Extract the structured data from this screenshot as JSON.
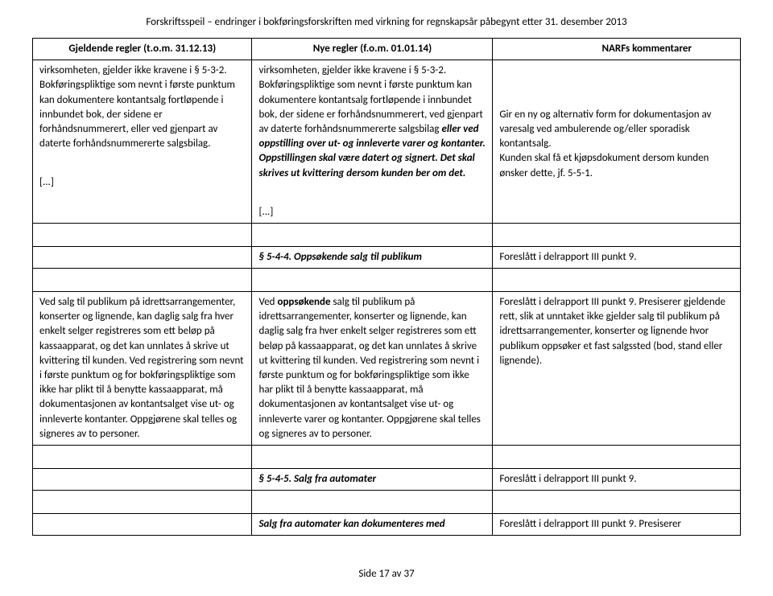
{
  "pageTitle": "Forskriftsspeil – endringer i bokføringsforskriften med virkning for regnskapsår påbegynt etter 31. desember 2013",
  "headers": {
    "col1": "Gjeldende regler (t.o.m. 31.12.13)",
    "col2": "Nye regler (f.o.m. 01.01.14)",
    "col3": "NARFs kommentarer"
  },
  "r1c1a": "virksomheten, gjelder ikke kravene i § 5-3-2. Bokføringspliktige som nevnt i første punktum kan dokumentere kontantsalg fortløpende i innbundet bok, der sidene er forhåndsnummerert, eller ved gjenpart av daterte forhåndsnummererte salgsbilag.",
  "r1c2a": "virksomheten, gjelder ikke kravene i § 5-3-2. Bokføringspliktige som nevnt i første punktum kan dokumentere kontantsalg fortløpende i innbundet bok, der sidene er forhåndsnummerert, ved gjenpart av daterte forhåndsnummererte salgsbilag ",
  "r1c2b": "eller ved oppstilling over ut- og innleverte varer og kontanter. Oppstillingen skal være datert og signert. Det skal skrives ut kvittering dersom kunden ber om det.",
  "r1c3a": "Gir en ny og alternativ form for dokumentasjon av varesalg ved ambulerende og/eller sporadisk kontantsalg.",
  "r1c3b": "Kunden skal få et kjøpsdokument dersom kunden ønsker dette, jf. 5-5-1.",
  "ellipsis": "[...]",
  "sec544": "§ 5-4-4. Oppsøkende salg til publikum",
  "sec544ref": "Foreslått i delrapport III punkt 9.",
  "r3c1": "Ved salg til publikum på idrettsarrangementer, konserter og lignende, kan daglig salg fra hver enkelt selger registreres som ett beløp på kassaapparat, og det kan unnlates å skrive ut kvittering til kunden. Ved registrering som nevnt i første punktum og for bokføringspliktige som ikke har plikt til å benytte kassaapparat, må dokumentasjonen av kontantsalget vise ut- og innleverte kontanter. Oppgjørene skal telles og signeres av to personer.",
  "r3c2a": "Ved ",
  "r3c2b": "oppsøkende",
  "r3c2c": " salg til publikum på idrettsarrangementer, konserter og lignende, kan daglig salg fra hver enkelt selger registreres som ett beløp på kassaapparat, og det kan unnlates å skrive ut kvittering til kunden. Ved registrering som nevnt i første punktum og for bokføringspliktige som ikke har plikt til å benytte kassaapparat, må dokumentasjonen av kontantsalget vise ut- og innleverte varer og kontanter. Oppgjørene skal telles og signeres av to personer.",
  "r3c3a": "Foreslått i delrapport III punkt 9. Presiserer gjeldende rett, slik at unntaket ikke gjelder salg til publikum på idrettsarrangementer, konserter og lignende hvor publikum oppsøker et fast salgssted (bod, stand eller lignende).",
  "sec545": "§ 5-4-5. Salg fra automater",
  "sec545ref": "Foreslått i delrapport III punkt 9.",
  "r5c2": "Salg fra automater kan dokumenteres med",
  "r5c3": "Foreslått i delrapport III punkt 9. Presiserer",
  "footer": "Side 17 av 37"
}
